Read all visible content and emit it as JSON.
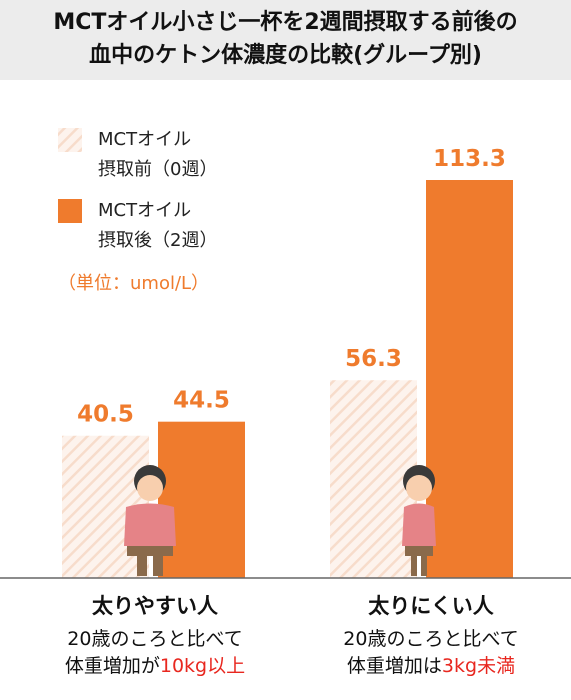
{
  "title": {
    "line1": "MCTオイル小さじ一杯を2週間摂取する前後の",
    "line2": "血中のケトン体濃度の比較(グループ別)"
  },
  "colors": {
    "before": "#f7dccb",
    "after": "#ef7b2d",
    "value_text": "#ef7b2d",
    "highlight": "#e8271f"
  },
  "chart_data": {
    "type": "bar",
    "unit_label": "（単位：umol/L）",
    "categories": [
      "太りやすい人",
      "太りにくい人"
    ],
    "series": [
      {
        "name": "MCTオイル\n摂取前（0週）",
        "name_lines": [
          "MCTオイル",
          "摂取前（0週）"
        ],
        "pattern": "hatched",
        "values": [
          40.5,
          56.3
        ]
      },
      {
        "name": "MCTオイル\n摂取後（2週）",
        "name_lines": [
          "MCTオイル",
          "摂取後（2週）"
        ],
        "pattern": "solid",
        "values": [
          44.5,
          113.3
        ]
      }
    ],
    "value_labels": [
      [
        "40.5",
        "44.5"
      ],
      [
        "56.3",
        "113.3"
      ]
    ],
    "legend_position": "top-left",
    "grid": false
  },
  "groups": [
    {
      "label": "太りやすい人",
      "note_line1": "20歳のころと比べて",
      "note_line2_prefix": "体重増加が",
      "note_line2_highlight": "10kg以上"
    },
    {
      "label": "太りにくい人",
      "note_line1": "20歳のころと比べて",
      "note_line2_prefix": "体重増加は",
      "note_line2_highlight": "3kg未満"
    }
  ]
}
